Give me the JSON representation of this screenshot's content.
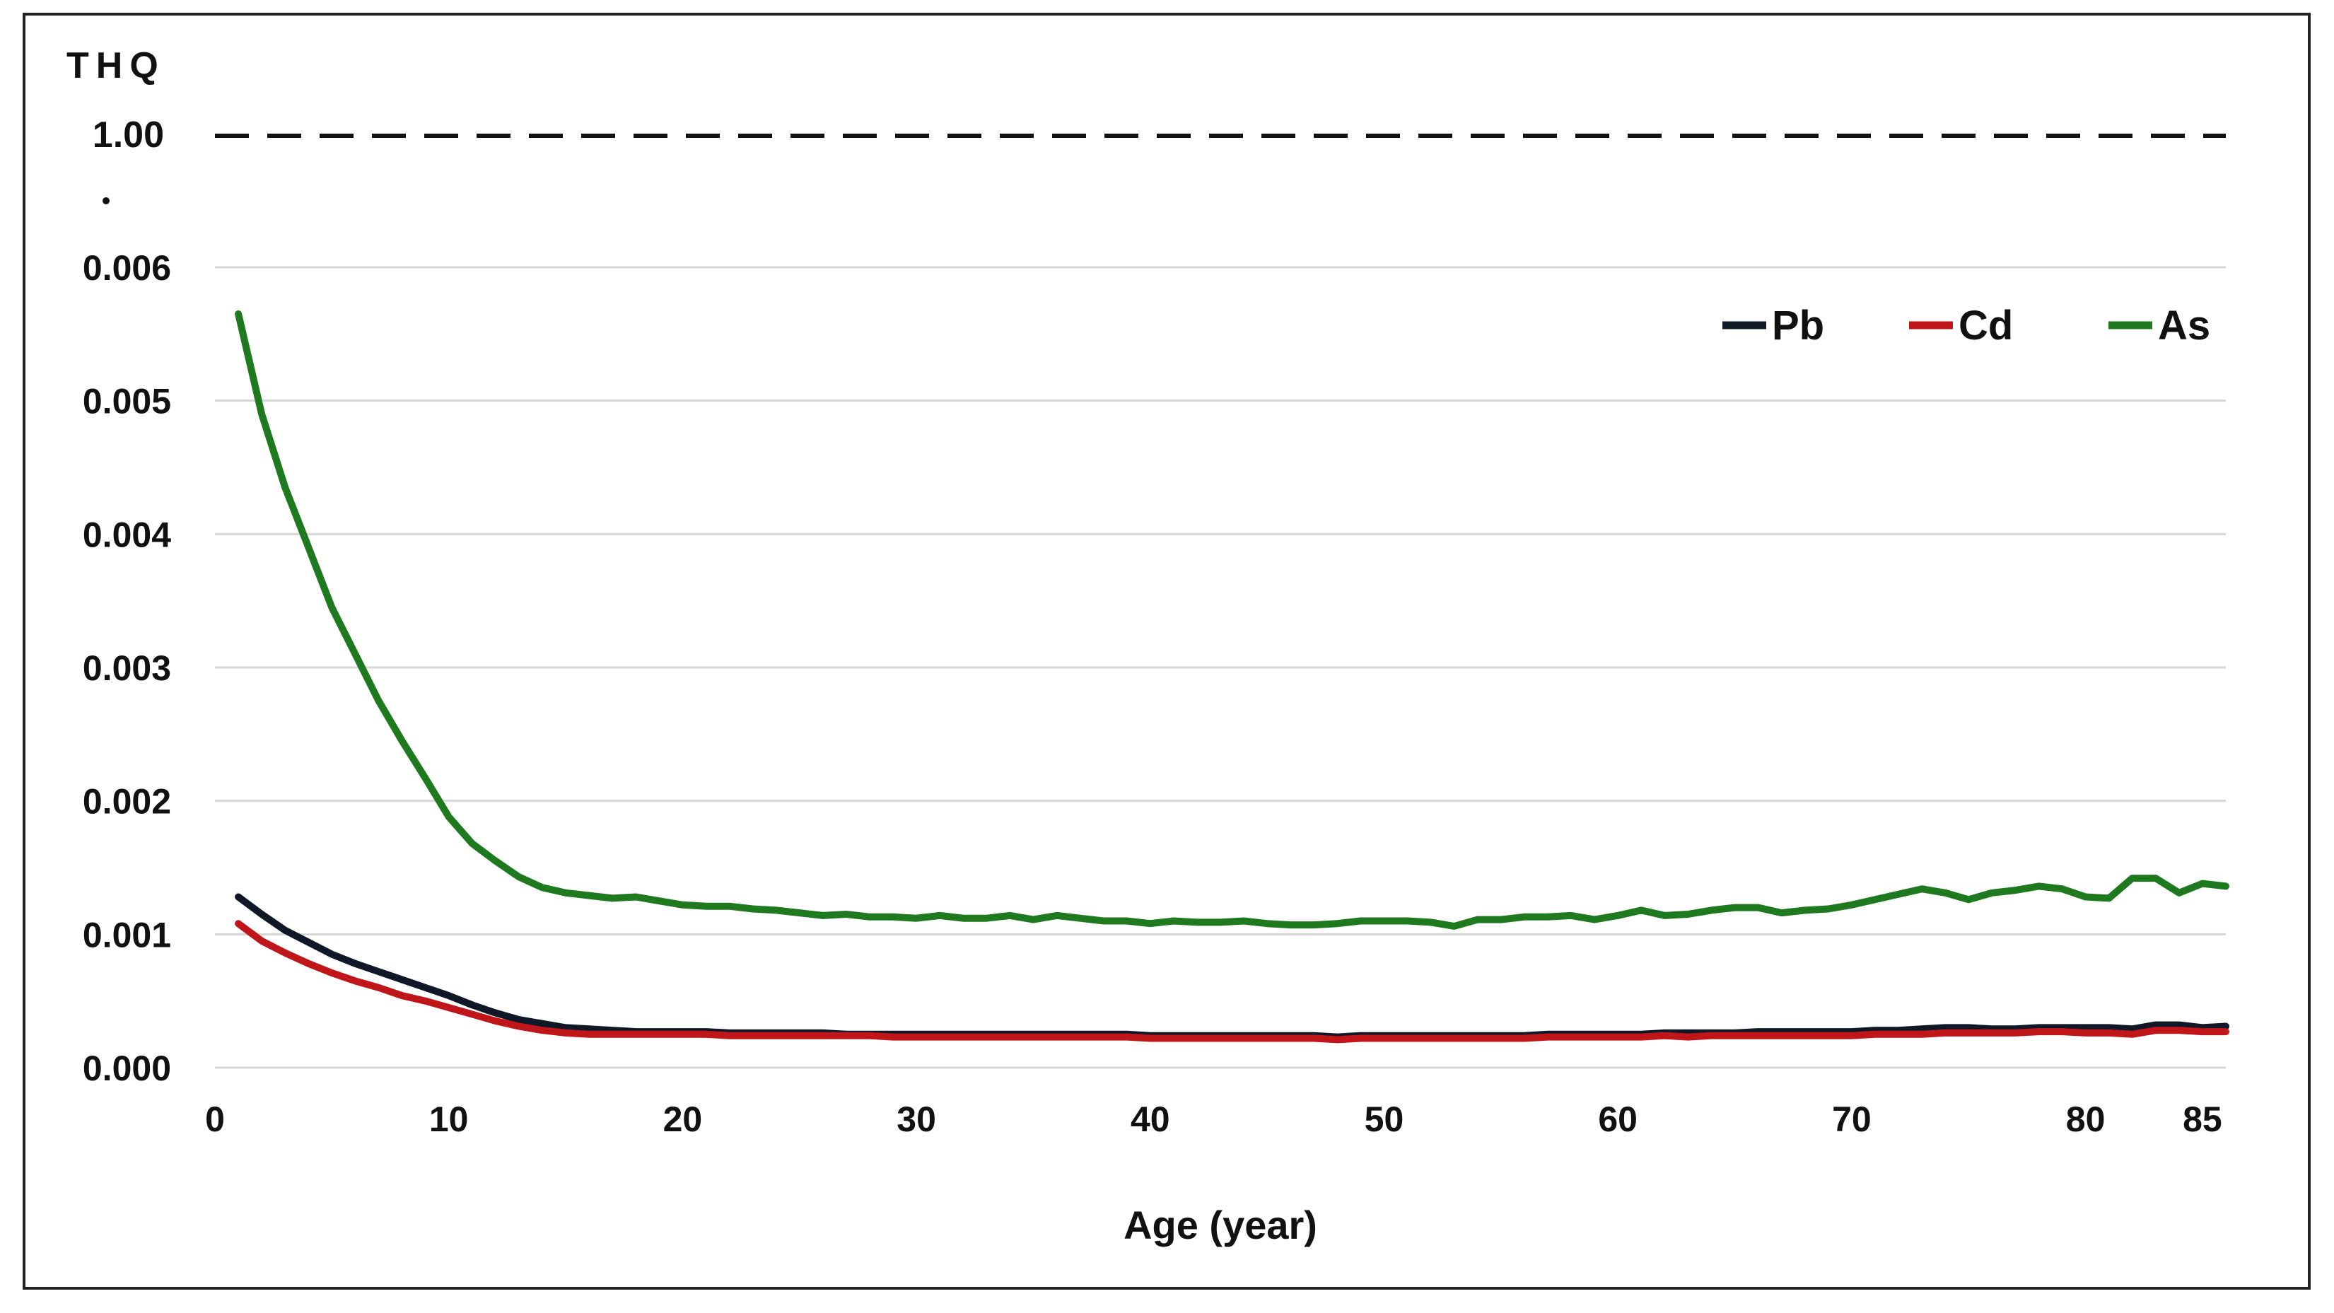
{
  "chart_data": {
    "type": "line",
    "title": "",
    "ylabel": "THQ",
    "xlabel": "Age (year)",
    "ylim": [
      0,
      0.006
    ],
    "xlim": [
      0,
      86
    ],
    "x_ticks": [
      0,
      10,
      20,
      30,
      40,
      50,
      60,
      70,
      80,
      85
    ],
    "x_tick_labels": [
      "0",
      "10",
      "20",
      "30",
      "40",
      "50",
      "60",
      "70",
      "80",
      "85"
    ],
    "y_ticks": [
      0,
      0.001,
      0.002,
      0.003,
      0.004,
      0.005,
      0.006
    ],
    "y_tick_labels": [
      "0.000",
      "0.001",
      "0.002",
      "0.003",
      "0.004",
      "0.005",
      "0.006"
    ],
    "axis_break_label": "1.00",
    "reference_line": {
      "label": "1.00",
      "value": 1.0,
      "style": "dashed"
    },
    "grid": true,
    "legend_position": "top-right",
    "x": [
      1,
      2,
      3,
      4,
      5,
      6,
      7,
      8,
      9,
      10,
      11,
      12,
      13,
      14,
      15,
      16,
      17,
      18,
      19,
      20,
      21,
      22,
      23,
      24,
      25,
      26,
      27,
      28,
      29,
      30,
      31,
      32,
      33,
      34,
      35,
      36,
      37,
      38,
      39,
      40,
      41,
      42,
      43,
      44,
      45,
      46,
      47,
      48,
      49,
      50,
      51,
      52,
      53,
      54,
      55,
      56,
      57,
      58,
      59,
      60,
      61,
      62,
      63,
      64,
      65,
      66,
      67,
      68,
      69,
      70,
      71,
      72,
      73,
      74,
      75,
      76,
      77,
      78,
      79,
      80,
      81,
      82,
      83,
      84,
      85,
      86
    ],
    "series": [
      {
        "name": "Pb",
        "color": "#101828",
        "values": [
          0.00128,
          0.00115,
          0.00103,
          0.00094,
          0.00085,
          0.00078,
          0.00072,
          0.00066,
          0.0006,
          0.00054,
          0.00047,
          0.00041,
          0.00036,
          0.00033,
          0.0003,
          0.00029,
          0.00028,
          0.00027,
          0.00027,
          0.00027,
          0.00027,
          0.00026,
          0.00026,
          0.00026,
          0.00026,
          0.00026,
          0.00025,
          0.00025,
          0.00025,
          0.00025,
          0.00025,
          0.00025,
          0.00025,
          0.00025,
          0.00025,
          0.00025,
          0.00025,
          0.00025,
          0.00025,
          0.00024,
          0.00024,
          0.00024,
          0.00024,
          0.00024,
          0.00024,
          0.00024,
          0.00024,
          0.00023,
          0.00024,
          0.00024,
          0.00024,
          0.00024,
          0.00024,
          0.00024,
          0.00024,
          0.00024,
          0.00025,
          0.00025,
          0.00025,
          0.00025,
          0.00025,
          0.00026,
          0.00026,
          0.00026,
          0.00026,
          0.00027,
          0.00027,
          0.00027,
          0.00027,
          0.00027,
          0.00028,
          0.00028,
          0.00029,
          0.0003,
          0.0003,
          0.00029,
          0.00029,
          0.0003,
          0.0003,
          0.0003,
          0.0003,
          0.00029,
          0.00032,
          0.00032,
          0.0003,
          0.00031
        ]
      },
      {
        "name": "Cd",
        "color": "#c0161a",
        "values": [
          0.00108,
          0.00095,
          0.00086,
          0.00078,
          0.00071,
          0.00065,
          0.0006,
          0.00054,
          0.0005,
          0.00045,
          0.0004,
          0.00035,
          0.00031,
          0.00028,
          0.00026,
          0.00025,
          0.00025,
          0.00025,
          0.00025,
          0.00025,
          0.00025,
          0.00024,
          0.00024,
          0.00024,
          0.00024,
          0.00024,
          0.00024,
          0.00024,
          0.00023,
          0.00023,
          0.00023,
          0.00023,
          0.00023,
          0.00023,
          0.00023,
          0.00023,
          0.00023,
          0.00023,
          0.00023,
          0.00022,
          0.00022,
          0.00022,
          0.00022,
          0.00022,
          0.00022,
          0.00022,
          0.00022,
          0.00021,
          0.00022,
          0.00022,
          0.00022,
          0.00022,
          0.00022,
          0.00022,
          0.00022,
          0.00022,
          0.00023,
          0.00023,
          0.00023,
          0.00023,
          0.00023,
          0.00024,
          0.00023,
          0.00024,
          0.00024,
          0.00024,
          0.00024,
          0.00024,
          0.00024,
          0.00024,
          0.00025,
          0.00025,
          0.00025,
          0.00026,
          0.00026,
          0.00026,
          0.00026,
          0.00027,
          0.00027,
          0.00026,
          0.00026,
          0.00025,
          0.00028,
          0.00028,
          0.00027,
          0.00027
        ]
      },
      {
        "name": "As",
        "color": "#1f7a1f",
        "values": [
          0.00565,
          0.0049,
          0.00435,
          0.0039,
          0.00345,
          0.0031,
          0.00275,
          0.00245,
          0.00217,
          0.00188,
          0.00168,
          0.00155,
          0.00143,
          0.00135,
          0.00131,
          0.00129,
          0.00127,
          0.00128,
          0.00125,
          0.00122,
          0.00121,
          0.00121,
          0.00119,
          0.00118,
          0.00116,
          0.00114,
          0.00115,
          0.00113,
          0.00113,
          0.00112,
          0.00114,
          0.00112,
          0.00112,
          0.00114,
          0.00111,
          0.00114,
          0.00112,
          0.0011,
          0.0011,
          0.00108,
          0.0011,
          0.00109,
          0.00109,
          0.0011,
          0.00108,
          0.00107,
          0.00107,
          0.00108,
          0.0011,
          0.0011,
          0.0011,
          0.00109,
          0.00106,
          0.00111,
          0.00111,
          0.00113,
          0.00113,
          0.00114,
          0.00111,
          0.00114,
          0.00118,
          0.00114,
          0.00115,
          0.00118,
          0.0012,
          0.0012,
          0.00116,
          0.00118,
          0.00119,
          0.00122,
          0.00126,
          0.0013,
          0.00134,
          0.00131,
          0.00126,
          0.00131,
          0.00133,
          0.00136,
          0.00134,
          0.00128,
          0.00127,
          0.00142,
          0.00142,
          0.00131,
          0.00138,
          0.00136
        ]
      }
    ]
  }
}
